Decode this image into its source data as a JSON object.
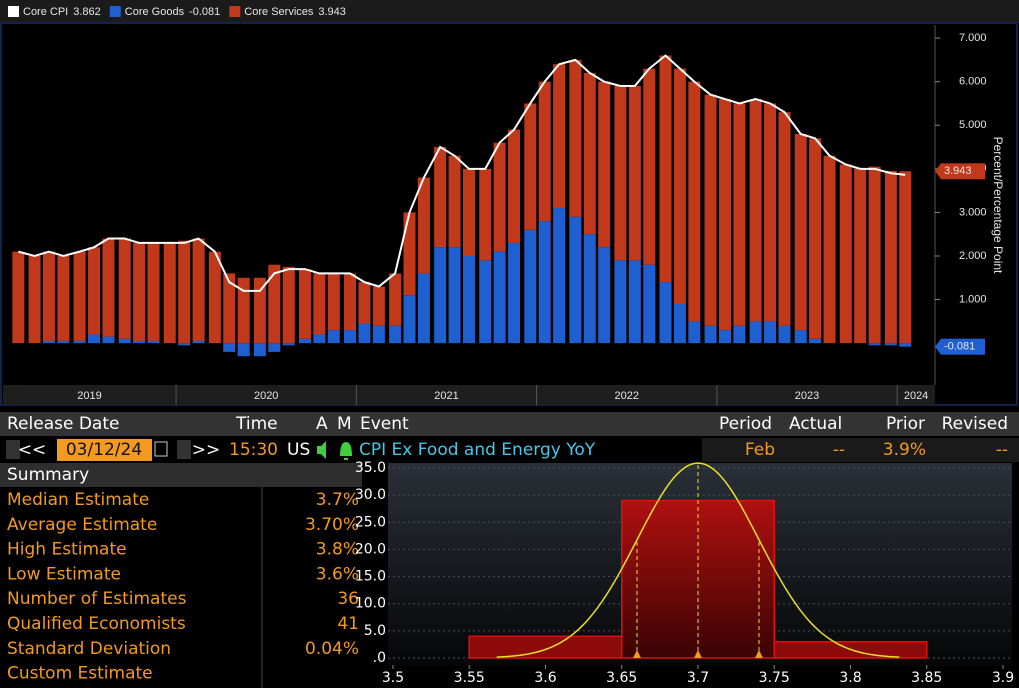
{
  "chart_data": [
    {
      "type": "bar",
      "stacked": true,
      "x": [
        2019.08,
        2019.17,
        2019.25,
        2019.33,
        2019.42,
        2019.5,
        2019.58,
        2019.67,
        2019.75,
        2019.83,
        2019.92,
        2020,
        2020.08,
        2020.17,
        2020.25,
        2020.33,
        2020.42,
        2020.5,
        2020.58,
        2020.67,
        2020.75,
        2020.83,
        2020.92,
        2021,
        2021.08,
        2021.17,
        2021.25,
        2021.33,
        2021.42,
        2021.5,
        2021.58,
        2021.67,
        2021.75,
        2021.83,
        2021.92,
        2022,
        2022.08,
        2022.17,
        2022.25,
        2022.33,
        2022.42,
        2022.5,
        2022.58,
        2022.67,
        2022.75,
        2022.83,
        2022.92,
        2023,
        2023.08,
        2023.17,
        2023.25,
        2023.33,
        2023.42,
        2023.5,
        2023.58,
        2023.67,
        2023.75,
        2023.83,
        2023.92,
        2024
      ],
      "series": [
        {
          "name": "Core CPI",
          "type": "line",
          "color": "#ffffff",
          "values": [
            2.1,
            2,
            2.1,
            2,
            2.1,
            2.2,
            2.4,
            2.4,
            2.3,
            2.3,
            2.3,
            2.3,
            2.4,
            2.1,
            1.4,
            1.2,
            1.2,
            1.6,
            1.7,
            1.7,
            1.6,
            1.6,
            1.6,
            1.4,
            1.3,
            1.6,
            3,
            3.8,
            4.5,
            4.3,
            4,
            4,
            4.6,
            4.9,
            5.5,
            6,
            6.4,
            6.5,
            6.2,
            6,
            5.9,
            5.9,
            6.3,
            6.6,
            6.3,
            6,
            5.7,
            5.6,
            5.5,
            5.6,
            5.5,
            5.3,
            4.8,
            4.7,
            4.3,
            4.1,
            4,
            4,
            3.9,
            3.862
          ]
        },
        {
          "name": "Core Goods",
          "color": "#1f5fcf",
          "values": [
            0,
            0,
            0.05,
            0.05,
            0.05,
            0.2,
            0.15,
            0.1,
            0.05,
            0.05,
            0,
            -0.05,
            0.05,
            0,
            -0.2,
            -0.3,
            -0.3,
            -0.2,
            -0.05,
            0.1,
            0.2,
            0.3,
            0.3,
            0.45,
            0.4,
            0.4,
            1.1,
            1.6,
            2.2,
            2.2,
            2,
            1.9,
            2.1,
            2.3,
            2.6,
            2.8,
            3.1,
            2.9,
            2.5,
            2.2,
            1.9,
            1.9,
            1.8,
            1.4,
            0.9,
            0.5,
            0.4,
            0.3,
            0.4,
            0.5,
            0.5,
            0.4,
            0.3,
            0.1,
            0,
            0,
            0,
            -0.05,
            -0.05,
            -0.081
          ]
        },
        {
          "name": "Core Services",
          "color": "#c0391b",
          "values": [
            2.1,
            2,
            2.05,
            1.95,
            2.05,
            2,
            2.25,
            2.3,
            2.25,
            2.25,
            2.3,
            2.35,
            2.35,
            2.1,
            1.6,
            1.5,
            1.5,
            1.8,
            1.75,
            1.6,
            1.4,
            1.3,
            1.3,
            0.95,
            0.9,
            1.2,
            1.9,
            2.2,
            2.3,
            2.1,
            2,
            2.1,
            2.5,
            2.6,
            2.9,
            3.2,
            3.3,
            3.6,
            3.7,
            3.8,
            4,
            4,
            4.5,
            5.2,
            5.4,
            5.5,
            5.3,
            5.3,
            5.1,
            5.1,
            5,
            4.9,
            4.5,
            4.6,
            4.3,
            4.1,
            4,
            4.05,
            3.95,
            3.943
          ]
        }
      ],
      "y_label": "Percent/Percentage Point",
      "ylim": [
        -0.96,
        7.3
      ],
      "yticks": [
        {
          "value": 1,
          "label": "1.000"
        },
        {
          "value": 2,
          "label": "2.000"
        },
        {
          "value": 3,
          "label": "3.000"
        },
        {
          "value": 4,
          "label": "4.000"
        },
        {
          "value": 5,
          "label": "5.000"
        },
        {
          "value": 6,
          "label": "6.000"
        },
        {
          "value": 7,
          "label": "7.000"
        }
      ],
      "xlim": [
        2019.04,
        2024.21
      ],
      "xticks": [
        2019,
        2020,
        2021,
        2022,
        2023,
        2024
      ]
    },
    {
      "type": "histogram",
      "bins": [
        3.55,
        3.65,
        3.75,
        3.85
      ],
      "values": [
        4,
        29,
        3
      ],
      "color": "#8e0b0b",
      "xlim": [
        3.5,
        3.9
      ],
      "xticks": [
        3.5,
        3.55,
        3.6,
        3.65,
        3.7,
        3.75,
        3.8,
        3.85,
        3.9
      ],
      "ylim": [
        0,
        35
      ],
      "yticks": [
        {
          "value": 0,
          "label": ".0"
        },
        {
          "value": 5,
          "label": "5.0"
        },
        {
          "value": 10,
          "label": "10.0"
        },
        {
          "value": 15,
          "label": "15.0"
        },
        {
          "value": 20,
          "label": "20.0"
        },
        {
          "value": 25,
          "label": "25.0"
        },
        {
          "value": 30,
          "label": "30.0"
        },
        {
          "value": 35,
          "label": "35.0"
        }
      ],
      "grid": true
    }
  ],
  "event_panel": {
    "headers": [
      "Release Date",
      "Time",
      "A",
      "M",
      "Event",
      "Period",
      "Actual",
      "Prior",
      "Revised"
    ],
    "nav": [
      "<<",
      ">>"
    ],
    "row": {
      "date": "03/12/24",
      "time": "15:30",
      "country": "US",
      "event": "CPI Ex Food and Energy YoY",
      "period": "Feb",
      "actual": "--",
      "prior": "3.9%",
      "revised": "--"
    }
  },
  "summary": {
    "title": "Summary",
    "rows": [
      {
        "label": "Median Estimate",
        "value": {
          "value": 3.7,
          "label": "3.7%"
        }
      },
      {
        "label": "Average Estimate",
        "value": {
          "value": 3.7,
          "label": "3.70%"
        }
      },
      {
        "label": "High Estimate",
        "value": {
          "value": 3.8,
          "label": "3.8%"
        }
      },
      {
        "label": "Low Estimate",
        "value": {
          "value": 3.6,
          "label": "3.6%"
        }
      },
      {
        "label": "Number of Estimates",
        "value": 36
      },
      {
        "label": "Qualified Economists",
        "value": 41
      },
      {
        "label": "Standard Deviation",
        "value": {
          "value": 0.04,
          "label": "0.04%"
        }
      },
      {
        "label": "Custom Estimate"
      }
    ]
  }
}
